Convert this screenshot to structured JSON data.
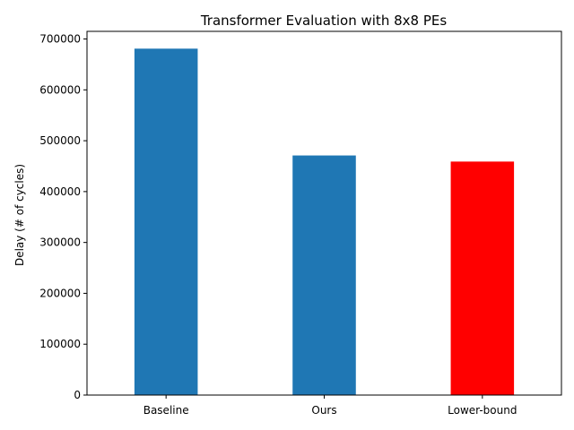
{
  "chart_data": {
    "type": "bar",
    "title": "Transformer Evaluation with 8x8 PEs",
    "xlabel": "",
    "ylabel": "Delay (# of cycles)",
    "categories": [
      "Baseline",
      "Ours",
      "Lower-bound"
    ],
    "values": [
      681000,
      471000,
      459000
    ],
    "bar_colors": [
      "#1f77b4",
      "#1f77b4",
      "#ff0000"
    ],
    "ylim": [
      0,
      715000
    ],
    "yticks": [
      0,
      100000,
      200000,
      300000,
      400000,
      500000,
      600000,
      700000
    ],
    "ytick_labels": [
      "0",
      "100000",
      "200000",
      "300000",
      "400000",
      "500000",
      "600000",
      "700000"
    ],
    "grid": false,
    "legend": "none"
  }
}
